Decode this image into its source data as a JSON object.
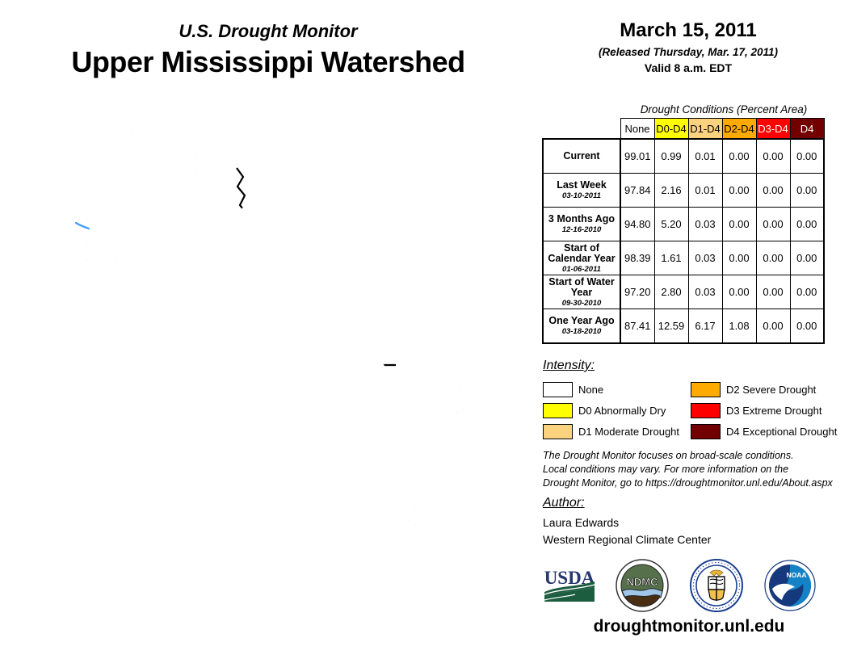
{
  "header": {
    "subtitle": "U.S. Drought Monitor",
    "title": "Upper Mississippi Watershed",
    "date": "March 15, 2011",
    "released": "(Released Thursday, Mar. 17, 2011)",
    "valid": "Valid 8 a.m. EDT"
  },
  "table": {
    "title": "Drought Conditions (Percent Area)",
    "columns": [
      {
        "label": "None",
        "bg": "#FFFFFF",
        "fg": "#000000"
      },
      {
        "label": "D0-D4",
        "bg": "#FFFF00",
        "fg": "#000000"
      },
      {
        "label": "D1-D4",
        "bg": "#FBD37F",
        "fg": "#000000"
      },
      {
        "label": "D2-D4",
        "bg": "#FFAA00",
        "fg": "#000000"
      },
      {
        "label": "D3-D4",
        "bg": "#FF0000",
        "fg": "#FFFFFF"
      },
      {
        "label": "D4",
        "bg": "#730000",
        "fg": "#FFFFFF"
      }
    ],
    "rows": [
      {
        "label": "Current",
        "date": "",
        "values": [
          "99.01",
          "0.99",
          "0.01",
          "0.00",
          "0.00",
          "0.00"
        ]
      },
      {
        "label": "Last Week",
        "date": "03-10-2011",
        "values": [
          "97.84",
          "2.16",
          "0.01",
          "0.00",
          "0.00",
          "0.00"
        ]
      },
      {
        "label": "3 Months Ago",
        "date": "12-16-2010",
        "values": [
          "94.80",
          "5.20",
          "0.03",
          "0.00",
          "0.00",
          "0.00"
        ]
      },
      {
        "label": "Start of Calendar Year",
        "date": "01-06-2011",
        "values": [
          "98.39",
          "1.61",
          "0.03",
          "0.00",
          "0.00",
          "0.00"
        ]
      },
      {
        "label": "Start of Water Year",
        "date": "09-30-2010",
        "values": [
          "97.20",
          "2.80",
          "0.03",
          "0.00",
          "0.00",
          "0.00"
        ]
      },
      {
        "label": "One Year Ago",
        "date": "03-18-2010",
        "values": [
          "87.41",
          "12.59",
          "6.17",
          "1.08",
          "0.00",
          "0.00"
        ]
      }
    ]
  },
  "legend": {
    "title": "Intensity:",
    "items": [
      {
        "label": "None",
        "color": "#FFFFFF"
      },
      {
        "label": "D0 Abnormally Dry",
        "color": "#FFFF00"
      },
      {
        "label": "D1 Moderate Drought",
        "color": "#FBD37F"
      },
      {
        "label": "D2 Severe Drought",
        "color": "#FFAA00"
      },
      {
        "label": "D3 Extreme Drought",
        "color": "#FF0000"
      },
      {
        "label": "D4 Exceptional Drought",
        "color": "#730000"
      }
    ]
  },
  "disclaimer": {
    "lines": [
      "The Drought Monitor focuses on broad-scale conditions.",
      "Local conditions may vary. For more information on the",
      "Drought Monitor, go to https://droughtmonitor.unl.edu/About.aspx"
    ]
  },
  "author": {
    "title": "Author:",
    "name": "Laura Edwards",
    "org": "Western Regional Climate Center"
  },
  "logos": {
    "usda_label": "USDA",
    "ndmc_label": "NDMC",
    "noaa_label": "NOAA"
  },
  "footer": {
    "url": "droughtmonitor.unl.edu"
  },
  "map": {
    "colors": {
      "river": "#3E9BFF",
      "lake_fill": "#A9D7F5",
      "lake_stroke": "#2F7FD0",
      "d0_area": "#FFFF00",
      "d1_area": "#FBD37F"
    }
  }
}
